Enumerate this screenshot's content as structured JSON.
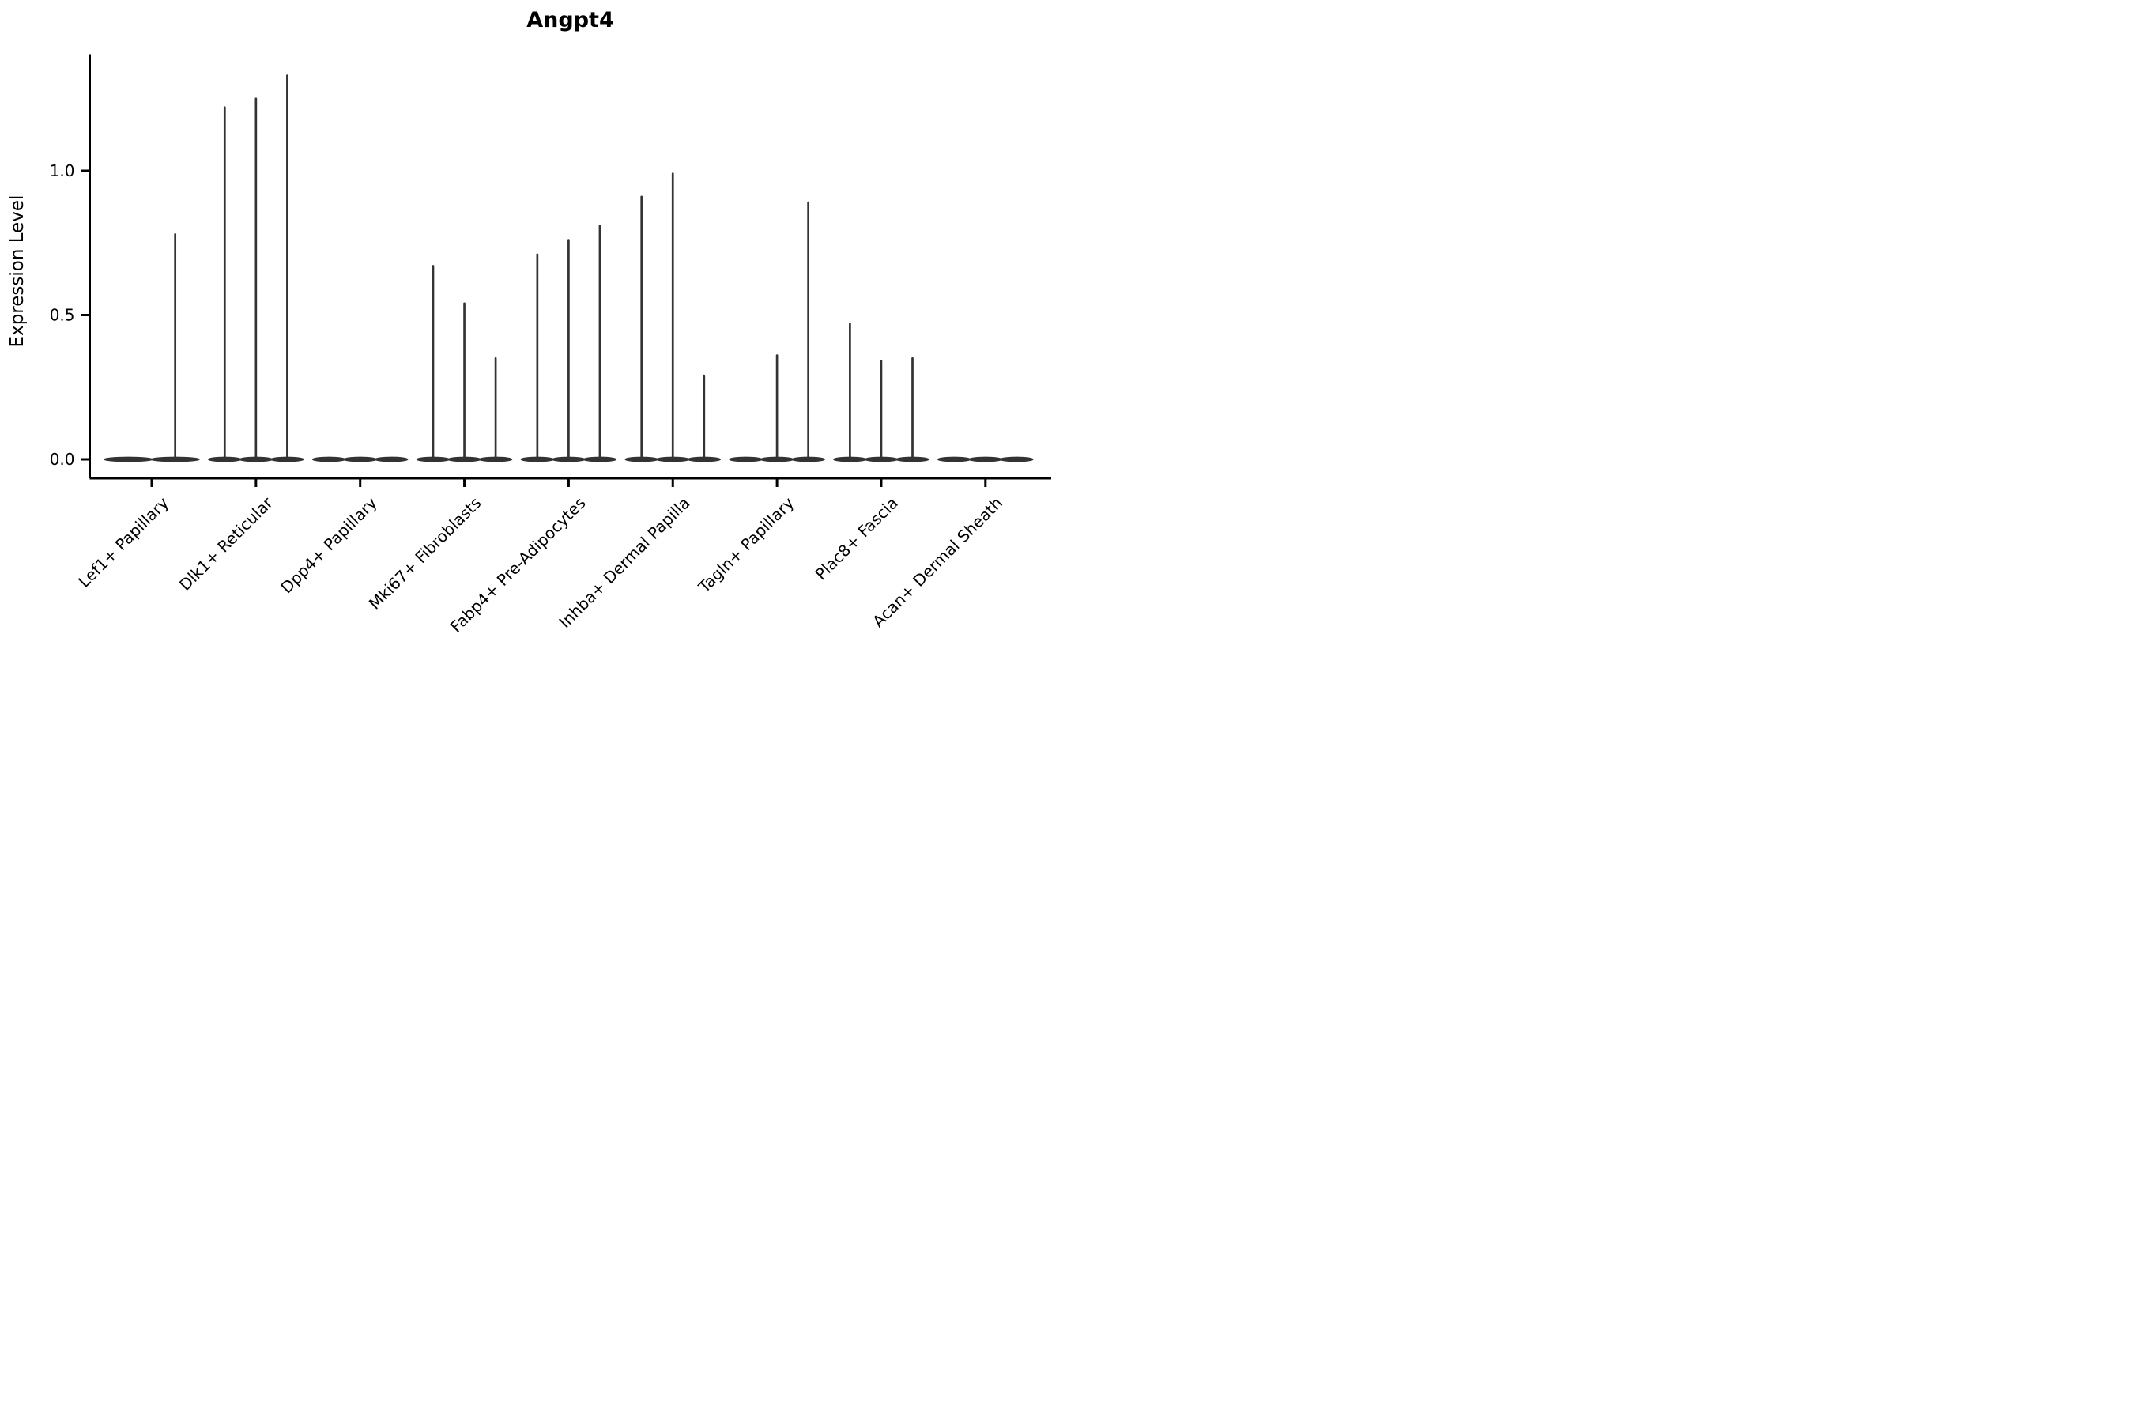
{
  "figure": {
    "title": "Angpt4",
    "ylabel": "Expression Level"
  },
  "chart_data": {
    "type": "violin",
    "title": "Angpt4",
    "xlabel": "",
    "ylabel": "Expression Level",
    "yticks": [
      "0.0",
      "0.5",
      "1.0"
    ],
    "ytick_values": [
      0.0,
      0.5,
      1.0
    ],
    "ylim": [
      -0.07,
      1.4
    ],
    "grid": false,
    "legend": false,
    "ink_color": "#333333",
    "axis_color": "#000000",
    "categories": [
      "Lef1+ Papillary",
      "Dlk1+ Reticular",
      "Dpp4+ Papillary",
      "Mki67+ Fibroblasts",
      "Fabp4+ Pre-Adipocytes",
      "Inhba+ Dermal Papilla",
      "Tagln+ Papillary",
      "Plac8+ Fascia",
      "Acan+ Dermal Sheath"
    ],
    "series": [
      {
        "category": "Lef1+ Papillary",
        "violins": [
          {
            "offset": -0.225,
            "width": 0.45,
            "max_expression": 0.0
          },
          {
            "offset": 0.225,
            "width": 0.45,
            "max_expression": 0.78
          }
        ]
      },
      {
        "category": "Dlk1+ Reticular",
        "violins": [
          {
            "offset": -0.3,
            "width": 0.3,
            "max_expression": 1.22
          },
          {
            "offset": 0.0,
            "width": 0.3,
            "max_expression": 1.25
          },
          {
            "offset": 0.3,
            "width": 0.3,
            "max_expression": 1.33
          }
        ]
      },
      {
        "category": "Dpp4+ Papillary",
        "violins": [
          {
            "offset": -0.3,
            "width": 0.3,
            "max_expression": 0.0
          },
          {
            "offset": 0.0,
            "width": 0.3,
            "max_expression": 0.0
          },
          {
            "offset": 0.3,
            "width": 0.3,
            "max_expression": 0.0
          }
        ]
      },
      {
        "category": "Mki67+ Fibroblasts",
        "violins": [
          {
            "offset": -0.3,
            "width": 0.3,
            "max_expression": 0.67
          },
          {
            "offset": 0.0,
            "width": 0.3,
            "max_expression": 0.54
          },
          {
            "offset": 0.3,
            "width": 0.3,
            "max_expression": 0.35
          }
        ]
      },
      {
        "category": "Fabp4+ Pre-Adipocytes",
        "violins": [
          {
            "offset": -0.3,
            "width": 0.3,
            "max_expression": 0.71
          },
          {
            "offset": 0.0,
            "width": 0.3,
            "max_expression": 0.76
          },
          {
            "offset": 0.3,
            "width": 0.3,
            "max_expression": 0.81
          }
        ]
      },
      {
        "category": "Inhba+ Dermal Papilla",
        "violins": [
          {
            "offset": -0.3,
            "width": 0.3,
            "max_expression": 0.91
          },
          {
            "offset": 0.0,
            "width": 0.3,
            "max_expression": 0.99
          },
          {
            "offset": 0.3,
            "width": 0.3,
            "max_expression": 0.29
          }
        ]
      },
      {
        "category": "Tagln+ Papillary",
        "violins": [
          {
            "offset": -0.3,
            "width": 0.3,
            "max_expression": 0.0
          },
          {
            "offset": 0.0,
            "width": 0.3,
            "max_expression": 0.36
          },
          {
            "offset": 0.3,
            "width": 0.3,
            "max_expression": 0.89
          }
        ]
      },
      {
        "category": "Plac8+ Fascia",
        "violins": [
          {
            "offset": -0.3,
            "width": 0.3,
            "max_expression": 0.47
          },
          {
            "offset": 0.0,
            "width": 0.3,
            "max_expression": 0.34
          },
          {
            "offset": 0.3,
            "width": 0.3,
            "max_expression": 0.35
          }
        ]
      },
      {
        "category": "Acan+ Dermal Sheath",
        "violins": [
          {
            "offset": -0.3,
            "width": 0.3,
            "max_expression": 0.0
          },
          {
            "offset": 0.0,
            "width": 0.3,
            "max_expression": 0.0
          },
          {
            "offset": 0.3,
            "width": 0.3,
            "max_expression": 0.0
          }
        ]
      }
    ]
  }
}
